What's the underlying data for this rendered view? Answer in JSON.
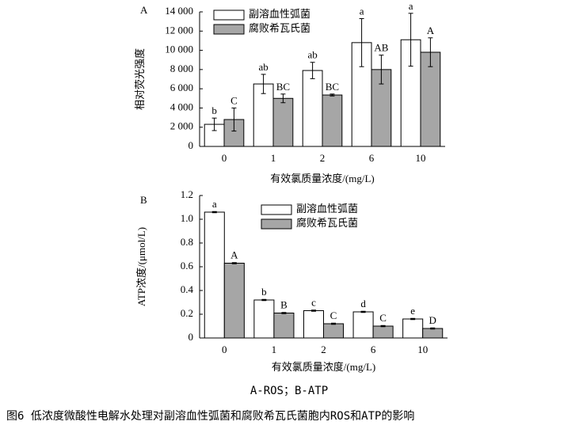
{
  "chart_data": [
    {
      "type": "bar",
      "panel": "A",
      "y_label": "相对荧光强度",
      "x_label": "有效氯质量浓度/(mg/L)",
      "categories": [
        "0",
        "1",
        "2",
        "6",
        "10"
      ],
      "series": [
        {
          "name": "副溶血性弧菌",
          "color": "#ffffff",
          "values": [
            2300,
            6500,
            7900,
            10800,
            11100
          ],
          "errors": [
            650,
            1000,
            850,
            2500,
            2750
          ],
          "significance": [
            "b",
            "ab",
            "ab",
            "a",
            "a"
          ]
        },
        {
          "name": "腐败希瓦氏菌",
          "color": "#a6a6a6",
          "values": [
            2800,
            5000,
            5350,
            8000,
            9800
          ],
          "errors": [
            1200,
            450,
            100,
            1500,
            1500
          ],
          "significance": [
            "C",
            "BC",
            "BC",
            "AB",
            "A"
          ]
        }
      ],
      "ylim": [
        0,
        14000
      ],
      "yticks": [
        0,
        {
          "value": 2000,
          "label": "2 000"
        },
        {
          "value": 4000,
          "label": "4 000"
        },
        {
          "value": 6000,
          "label": "6 000"
        },
        {
          "value": 8000,
          "label": "8 000"
        },
        {
          "value": 10000,
          "label": "10 000"
        },
        {
          "value": 12000,
          "label": "12 000"
        },
        {
          "value": 14000,
          "label": "14 000"
        }
      ]
    },
    {
      "type": "bar",
      "panel": "B",
      "y_label": "ATP浓度/(μmol/L)",
      "x_label": "有效氯质量浓度/(mg/L)",
      "categories": [
        "0",
        "1",
        "2",
        "6",
        "10"
      ],
      "series": [
        {
          "name": "副溶血性弧菌",
          "color": "#ffffff",
          "values": [
            1.06,
            0.32,
            0.23,
            0.22,
            0.16
          ],
          "errors": [
            0.005,
            0.005,
            0.005,
            0.005,
            0.005
          ],
          "significance": [
            "a",
            "b",
            "c",
            "d",
            "e"
          ]
        },
        {
          "name": "腐败希瓦氏菌",
          "color": "#a6a6a6",
          "values": [
            0.63,
            0.21,
            0.12,
            0.1,
            0.08
          ],
          "errors": [
            0.005,
            0.005,
            0.005,
            0.005,
            0.005
          ],
          "significance": [
            "A",
            "B",
            "C",
            "C",
            "D"
          ]
        }
      ],
      "ylim": [
        0,
        1.2
      ],
      "yticks": [
        0,
        0.2,
        0.4,
        0.6,
        0.8,
        {
          "value": 1.0,
          "label": "1.0"
        },
        1.2
      ]
    }
  ],
  "note": "A-ROS；B-ATP",
  "caption": "图6 低浓度微酸性电解水处理对副溶血性弧菌和腐败希瓦氏菌胞内ROS和ATP的影响"
}
